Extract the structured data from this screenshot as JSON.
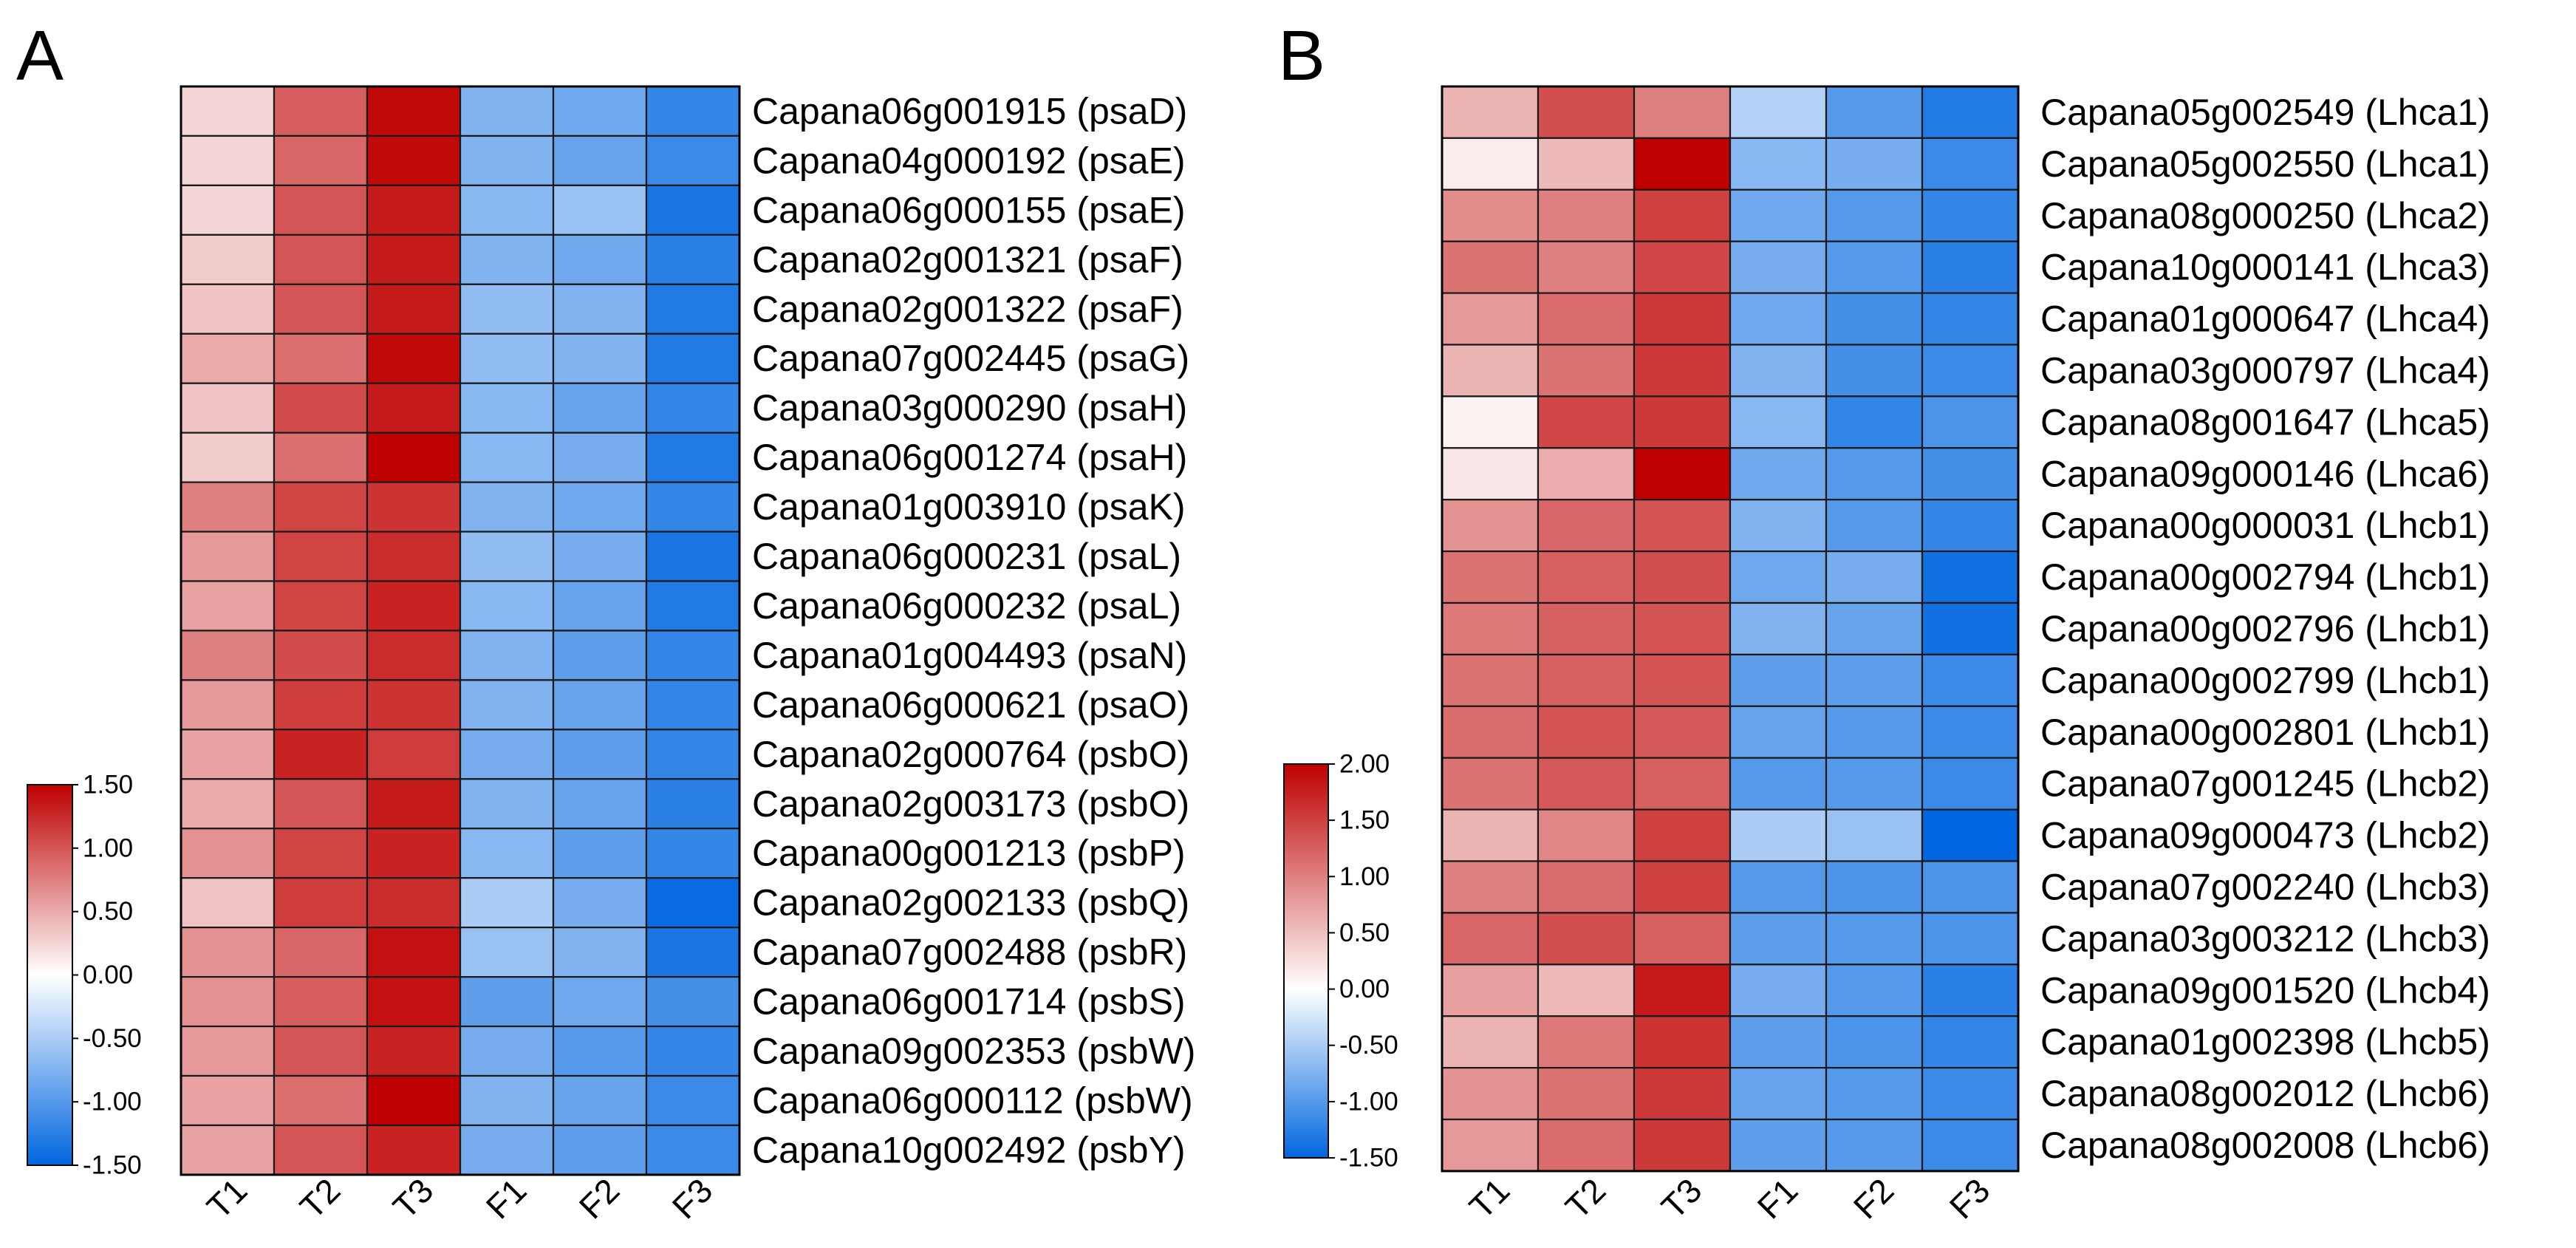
{
  "panels": [
    {
      "letter": "A",
      "chart_data": {
        "type": "heatmap",
        "title": "",
        "columns": [
          "T1",
          "T2",
          "T3",
          "F1",
          "F2",
          "F3"
        ],
        "rows": [
          "Capana06g001915 (psaD)",
          "Capana04g000192 (psaE)",
          "Capana06g000155 (psaE)",
          "Capana02g001321 (psaF)",
          "Capana02g001322 (psaF)",
          "Capana07g002445 (psaG)",
          "Capana03g000290 (psaH)",
          "Capana06g001274 (psaH)",
          "Capana01g003910 (psaK)",
          "Capana06g000231 (psaL)",
          "Capana06g000232 (psaL)",
          "Capana01g004493 (psaN)",
          "Capana06g000621 (psaO)",
          "Capana02g000764 (psbO)",
          "Capana02g003173 (psbO)",
          "Capana00g001213 (psbP)",
          "Capana02g002133 (psbQ)",
          "Capana07g002488 (psbR)",
          "Capana06g001714 (psbS)",
          "Capana09g002353 (psbW)",
          "Capana06g000112 (psbW)",
          "Capana10g002492 (psbY)"
        ],
        "values": [
          [
            0.25,
            0.95,
            1.45,
            -0.75,
            -0.85,
            -1.2
          ],
          [
            0.25,
            0.9,
            1.45,
            -0.75,
            -0.9,
            -1.15
          ],
          [
            0.25,
            1.0,
            1.35,
            -0.7,
            -0.6,
            -1.35
          ],
          [
            0.3,
            1.0,
            1.35,
            -0.75,
            -0.85,
            -1.25
          ],
          [
            0.35,
            1.0,
            1.35,
            -0.65,
            -0.75,
            -1.3
          ],
          [
            0.5,
            0.85,
            1.45,
            -0.65,
            -0.75,
            -1.3
          ],
          [
            0.35,
            1.05,
            1.35,
            -0.7,
            -0.9,
            -1.2
          ],
          [
            0.3,
            0.85,
            1.5,
            -0.7,
            -0.8,
            -1.3
          ],
          [
            0.75,
            1.1,
            1.2,
            -0.75,
            -0.85,
            -1.2
          ],
          [
            0.6,
            1.1,
            1.25,
            -0.65,
            -0.8,
            -1.35
          ],
          [
            0.55,
            1.1,
            1.3,
            -0.7,
            -0.9,
            -1.3
          ],
          [
            0.75,
            1.05,
            1.25,
            -0.75,
            -0.95,
            -1.2
          ],
          [
            0.6,
            1.15,
            1.2,
            -0.75,
            -0.9,
            -1.2
          ],
          [
            0.55,
            1.3,
            1.15,
            -0.8,
            -0.95,
            -1.2
          ],
          [
            0.5,
            1.0,
            1.35,
            -0.75,
            -0.9,
            -1.25
          ],
          [
            0.65,
            1.1,
            1.3,
            -0.7,
            -0.95,
            -1.2
          ],
          [
            0.35,
            1.15,
            1.25,
            -0.5,
            -0.8,
            -1.45
          ],
          [
            0.65,
            0.9,
            1.4,
            -0.6,
            -0.75,
            -1.35
          ],
          [
            0.65,
            0.95,
            1.4,
            -0.95,
            -0.85,
            -1.1
          ],
          [
            0.6,
            1.0,
            1.3,
            -0.8,
            -1.0,
            -1.2
          ],
          [
            0.55,
            0.85,
            1.5,
            -0.75,
            -0.9,
            -1.15
          ],
          [
            0.55,
            1.0,
            1.3,
            -0.8,
            -0.95,
            -1.15
          ]
        ],
        "colorbar": {
          "range": [
            -1.5,
            1.5
          ],
          "ticks": [
            "1.50",
            "1.00",
            "0.50",
            "0.00",
            "-0.50",
            "-1.00",
            "-1.50"
          ],
          "colors": {
            "low": "#0066e0",
            "mid": "#ffffff",
            "high": "#bf0000"
          }
        }
      }
    },
    {
      "letter": "B",
      "chart_data": {
        "type": "heatmap",
        "title": "",
        "columns": [
          "T1",
          "T2",
          "T3",
          "F1",
          "F2",
          "F3"
        ],
        "rows": [
          "Capana05g002549 (Lhca1)",
          "Capana05g002550 (Lhca1)",
          "Capana08g000250 (Lhca2)",
          "Capana10g000141 (Lhca3)",
          "Capana01g000647 (Lhca4)",
          "Capana03g000797 (Lhca4)",
          "Capana08g001647 (Lhca5)",
          "Capana09g000146 (Lhca6)",
          "Capana00g000031 (Lhcb1)",
          "Capana00g002794 (Lhcb1)",
          "Capana00g002796 (Lhcb1)",
          "Capana00g002799 (Lhcb1)",
          "Capana00g002801 (Lhcb1)",
          "Capana07g001245 (Lhcb2)",
          "Capana09g000473 (Lhcb2)",
          "Capana07g002240 (Lhcb3)",
          "Capana03g003212 (Lhcb3)",
          "Capana09g001520 (Lhcb4)",
          "Capana01g002398 (Lhcb5)",
          "Capana08g002012 (Lhcb6)",
          "Capana08g002008 (Lhcb6)"
        ],
        "values": [
          [
            0.6,
            1.4,
            1.0,
            -0.45,
            -1.0,
            -1.3
          ],
          [
            0.15,
            0.55,
            2.0,
            -0.7,
            -0.8,
            -1.15
          ],
          [
            0.9,
            1.0,
            1.5,
            -0.85,
            -1.0,
            -1.2
          ],
          [
            1.1,
            1.0,
            1.45,
            -0.8,
            -1.0,
            -1.25
          ],
          [
            0.8,
            1.15,
            1.55,
            -0.85,
            -1.1,
            -1.2
          ],
          [
            0.6,
            1.1,
            1.55,
            -0.75,
            -1.1,
            -1.15
          ],
          [
            0.1,
            1.45,
            1.55,
            -0.7,
            -1.2,
            -1.05
          ],
          [
            0.2,
            0.65,
            2.0,
            -0.85,
            -1.0,
            -1.1
          ],
          [
            0.85,
            1.2,
            1.35,
            -0.75,
            -1.0,
            -1.2
          ],
          [
            1.1,
            1.25,
            1.4,
            -0.85,
            -0.8,
            -1.4
          ],
          [
            1.05,
            1.25,
            1.35,
            -0.75,
            -0.9,
            -1.4
          ],
          [
            1.1,
            1.25,
            1.35,
            -0.95,
            -0.95,
            -1.15
          ],
          [
            1.15,
            1.35,
            1.3,
            -0.9,
            -1.0,
            -1.15
          ],
          [
            1.1,
            1.3,
            1.25,
            -1.0,
            -1.0,
            -1.15
          ],
          [
            0.6,
            0.95,
            1.5,
            -0.5,
            -0.6,
            -1.5
          ],
          [
            1.0,
            1.15,
            1.5,
            -1.0,
            -1.05,
            -1.05
          ],
          [
            1.2,
            1.4,
            1.25,
            -0.95,
            -1.0,
            -1.05
          ],
          [
            0.75,
            0.55,
            1.8,
            -0.8,
            -1.0,
            -1.25
          ],
          [
            0.6,
            1.05,
            1.6,
            -0.95,
            -1.05,
            -1.2
          ],
          [
            0.85,
            1.1,
            1.55,
            -0.9,
            -1.0,
            -1.15
          ],
          [
            0.8,
            1.15,
            1.55,
            -0.95,
            -1.0,
            -1.15
          ]
        ],
        "colorbar": {
          "range": [
            -1.5,
            2.0
          ],
          "ticks": [
            "2.00",
            "1.50",
            "1.00",
            "0.50",
            "0.00",
            "-0.50",
            "-1.00",
            "-1.50"
          ],
          "colors": {
            "low": "#0066e0",
            "mid": "#ffffff",
            "high": "#bf0000"
          }
        }
      }
    }
  ]
}
